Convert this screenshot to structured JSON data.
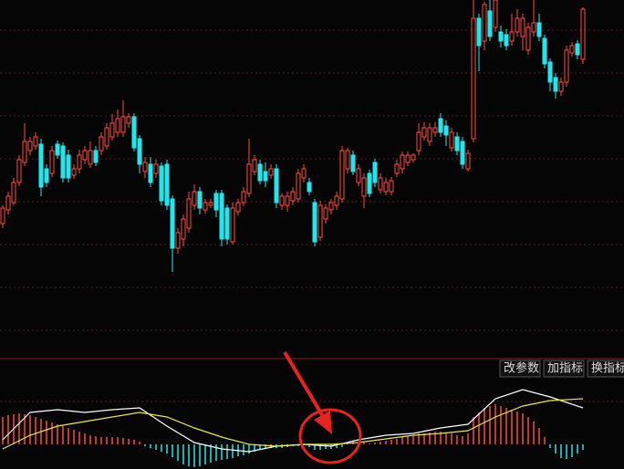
{
  "toolbar": {
    "buttons": [
      "改参数",
      "加指标",
      "换指标"
    ]
  },
  "chart_data": [
    {
      "type": "candlestick",
      "up_color": "#ff4a3d",
      "down_color": "#1ee8ee",
      "ylim": [
        10,
        400
      ],
      "candles": [
        [
          155,
          172,
          175,
          150
        ],
        [
          170,
          185,
          190,
          165
        ],
        [
          178,
          200,
          205,
          175
        ],
        [
          200,
          225,
          230,
          196
        ],
        [
          222,
          245,
          265,
          218
        ],
        [
          235,
          245,
          250,
          230
        ],
        [
          240,
          250,
          255,
          236
        ],
        [
          242,
          195,
          248,
          185
        ],
        [
          215,
          200,
          220,
          195
        ],
        [
          210,
          235,
          240,
          206
        ],
        [
          242,
          230,
          246,
          226
        ],
        [
          240,
          205,
          244,
          200
        ],
        [
          230,
          205,
          236,
          200
        ],
        [
          208,
          215,
          220,
          204
        ],
        [
          215,
          230,
          236,
          210
        ],
        [
          225,
          235,
          240,
          220
        ],
        [
          220,
          235,
          245,
          216
        ],
        [
          235,
          222,
          240,
          218
        ],
        [
          235,
          250,
          255,
          230
        ],
        [
          240,
          260,
          265,
          236
        ],
        [
          250,
          265,
          275,
          246
        ],
        [
          255,
          270,
          280,
          250
        ],
        [
          255,
          272,
          290,
          250
        ],
        [
          265,
          272,
          276,
          260
        ],
        [
          272,
          238,
          276,
          234
        ],
        [
          248,
          220,
          252,
          210
        ],
        [
          212,
          222,
          228,
          205
        ],
        [
          220,
          200,
          228,
          195
        ],
        [
          210,
          220,
          225,
          205
        ],
        [
          218,
          180,
          222,
          175
        ],
        [
          220,
          175,
          225,
          170
        ],
        [
          182,
          128,
          186,
          102
        ],
        [
          128,
          145,
          150,
          122
        ],
        [
          138,
          160,
          165,
          130
        ],
        [
          150,
          182,
          190,
          145
        ],
        [
          175,
          190,
          198,
          170
        ],
        [
          190,
          172,
          195,
          165
        ],
        [
          170,
          178,
          182,
          166
        ],
        [
          175,
          178,
          182,
          172
        ],
        [
          188,
          170,
          192,
          162
        ],
        [
          188,
          138,
          192,
          130
        ],
        [
          172,
          138,
          176,
          132
        ],
        [
          135,
          172,
          178,
          132
        ],
        [
          168,
          178,
          182,
          164
        ],
        [
          178,
          190,
          195,
          174
        ],
        [
          188,
          220,
          248,
          184
        ],
        [
          212,
          225,
          230,
          208
        ],
        [
          220,
          202,
          225,
          198
        ],
        [
          212,
          202,
          222,
          195
        ],
        [
          208,
          215,
          220,
          204
        ],
        [
          215,
          178,
          220,
          172
        ],
        [
          175,
          185,
          188,
          170
        ],
        [
          175,
          185,
          190,
          168
        ],
        [
          180,
          190,
          195,
          175
        ],
        [
          182,
          210,
          215,
          178
        ],
        [
          205,
          215,
          220,
          200
        ],
        [
          200,
          190,
          205,
          186
        ],
        [
          178,
          135,
          182,
          130
        ],
        [
          140,
          175,
          180,
          136
        ],
        [
          160,
          172,
          176,
          155
        ],
        [
          170,
          178,
          182,
          165
        ],
        [
          175,
          185,
          190,
          170
        ],
        [
          182,
          235,
          240,
          178
        ],
        [
          215,
          235,
          238,
          210
        ],
        [
          230,
          212,
          235,
          208
        ],
        [
          200,
          215,
          220,
          196
        ],
        [
          185,
          205,
          210,
          172
        ],
        [
          210,
          188,
          214,
          184
        ],
        [
          222,
          200,
          226,
          195
        ],
        [
          192,
          205,
          210,
          188
        ],
        [
          190,
          200,
          205,
          186
        ],
        [
          190,
          202,
          206,
          186
        ],
        [
          210,
          220,
          225,
          206
        ],
        [
          215,
          230,
          234,
          210
        ],
        [
          222,
          230,
          234,
          218
        ],
        [
          225,
          230,
          232,
          222
        ],
        [
          235,
          255,
          265,
          230
        ],
        [
          250,
          260,
          266,
          246
        ],
        [
          245,
          260,
          265,
          240
        ],
        [
          255,
          260,
          266,
          250
        ],
        [
          270,
          255,
          276,
          250
        ],
        [
          262,
          252,
          268,
          240
        ],
        [
          238,
          255,
          260,
          234
        ],
        [
          250,
          235,
          255,
          230
        ],
        [
          245,
          220,
          250,
          215
        ],
        [
          215,
          232,
          236,
          212
        ],
        [
          248,
          380,
          400,
          244
        ],
        [
          380,
          350,
          385,
          322
        ],
        [
          355,
          395,
          398,
          345
        ],
        [
          388,
          360,
          400,
          355
        ],
        [
          370,
          400,
          400,
          365
        ],
        [
          365,
          355,
          372,
          348
        ],
        [
          362,
          350,
          368,
          345
        ],
        [
          355,
          365,
          385,
          350
        ],
        [
          365,
          380,
          390,
          360
        ],
        [
          360,
          380,
          385,
          345
        ],
        [
          345,
          370,
          375,
          340
        ],
        [
          365,
          375,
          400,
          360
        ],
        [
          375,
          360,
          385,
          355
        ],
        [
          358,
          330,
          362,
          325
        ],
        [
          332,
          310,
          336,
          300
        ],
        [
          315,
          300,
          320,
          292
        ],
        [
          300,
          310,
          315,
          295
        ],
        [
          310,
          345,
          350,
          305
        ],
        [
          342,
          350,
          354,
          338
        ],
        [
          352,
          340,
          356,
          335
        ],
        [
          335,
          390,
          392,
          330
        ]
      ]
    },
    {
      "type": "macd",
      "ylim": [
        -27,
        92
      ],
      "up_color": "#ff4a3d",
      "down_color": "#1ee8ee",
      "histogram": [
        30,
        32,
        33,
        34,
        33,
        32,
        30,
        28,
        26,
        24,
        22,
        20,
        18,
        16,
        14,
        12,
        10,
        9,
        8,
        8,
        8,
        8,
        7,
        6,
        5,
        3,
        -2,
        -4,
        -6,
        -8,
        -10,
        -14,
        -18,
        -22,
        -24,
        -25,
        -24,
        -22,
        -20,
        -18,
        -17,
        -16,
        -15,
        -13,
        -12,
        -10,
        -8,
        -6,
        -5,
        -4,
        -4,
        -4,
        -3,
        -2,
        -2,
        -1,
        -3,
        -6,
        -6,
        -5,
        -5,
        -4,
        -3,
        2,
        3,
        2,
        2,
        1,
        2,
        3,
        4,
        5,
        6,
        8,
        9,
        10,
        12,
        12,
        13,
        14,
        14,
        13,
        12,
        10,
        9,
        12,
        30,
        35,
        40,
        42,
        44,
        42,
        40,
        38,
        36,
        34,
        30,
        25,
        18,
        8,
        -4,
        -10,
        -15,
        -16,
        -14,
        -10,
        -6
      ],
      "x": [
        0,
        5,
        10,
        15,
        20,
        25,
        30,
        35,
        40,
        45,
        50,
        55,
        60,
        65,
        70,
        75,
        80,
        85,
        90,
        95,
        100,
        106
      ],
      "series": [
        {
          "color": "#ffffff",
          "values": [
            5,
            35,
            38,
            35,
            38,
            40,
            20,
            2,
            -5,
            -8,
            -2,
            0,
            -2,
            5,
            10,
            12,
            18,
            22,
            50,
            60,
            52,
            40
          ]
        },
        {
          "color": "#e8e84a",
          "values": [
            -5,
            10,
            20,
            25,
            30,
            35,
            30,
            18,
            8,
            0,
            -2,
            0,
            0,
            2,
            6,
            10,
            12,
            15,
            30,
            42,
            48,
            50
          ]
        }
      ]
    }
  ]
}
